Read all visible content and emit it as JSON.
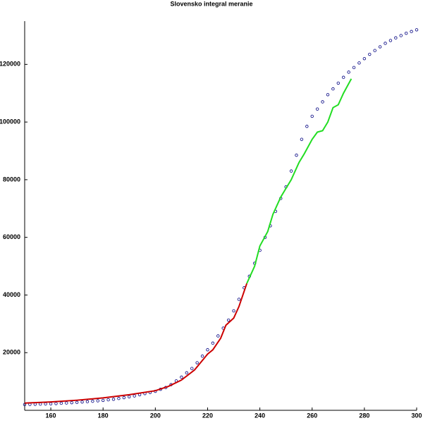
{
  "chart_data": {
    "type": "line",
    "title": "Slovensko integral meranie",
    "xlim": [
      150,
      300
    ],
    "ylim": [
      0,
      135000
    ],
    "xticks": [
      160,
      180,
      200,
      220,
      240,
      260,
      280,
      300
    ],
    "yticks": [
      20000,
      40000,
      60000,
      80000,
      100000,
      120000
    ],
    "series": [
      {
        "color": "#000080",
        "style": "points",
        "x": [
          150,
          152,
          154,
          156,
          158,
          160,
          162,
          164,
          166,
          168,
          170,
          172,
          174,
          176,
          178,
          180,
          182,
          184,
          186,
          188,
          190,
          192,
          194,
          196,
          198,
          200,
          202,
          204,
          206,
          208,
          210,
          212,
          214,
          216,
          218,
          220,
          222,
          224,
          226,
          228,
          230,
          232,
          234,
          236,
          238,
          240,
          242,
          244,
          246,
          248,
          250,
          252,
          254,
          256,
          258,
          260,
          262,
          264,
          266,
          268,
          270,
          272,
          274,
          276,
          278,
          280,
          282,
          284,
          286,
          288,
          290,
          292,
          294,
          296,
          298,
          300
        ],
        "values": [
          2000,
          2050,
          2100,
          2150,
          2200,
          2250,
          2350,
          2450,
          2550,
          2650,
          2750,
          2900,
          3000,
          3150,
          3300,
          3450,
          3650,
          3850,
          4100,
          4400,
          4700,
          5000,
          5400,
          5800,
          6200,
          6600,
          7300,
          7900,
          8900,
          10200,
          11500,
          13000,
          14500,
          16500,
          18800,
          21000,
          23300,
          25800,
          28500,
          31300,
          34500,
          38500,
          42500,
          46500,
          51000,
          55500,
          60000,
          64000,
          69000,
          73500,
          77500,
          83000,
          88500,
          94000,
          98500,
          102000,
          104500,
          107000,
          109500,
          111500,
          113500,
          115500,
          117300,
          118900,
          120500,
          122000,
          123500,
          124800,
          126100,
          127300,
          128300,
          129200,
          130000,
          130800,
          131400,
          132000
        ]
      },
      {
        "color": "#cc0000",
        "style": "line",
        "x": [
          150,
          160,
          170,
          180,
          190,
          200,
          205,
          210,
          215,
          220,
          222,
          225,
          227,
          230,
          232,
          235
        ],
        "values": [
          2500,
          2900,
          3500,
          4300,
          5400,
          6800,
          8300,
          10500,
          14000,
          19500,
          21000,
          25000,
          29500,
          32000,
          36000,
          44000
        ]
      },
      {
        "color": "#22dd22",
        "style": "line",
        "x": [
          235,
          238,
          240,
          243,
          245,
          248,
          250,
          252,
          255,
          257,
          260,
          262,
          264,
          266,
          268,
          270,
          272,
          275
        ],
        "values": [
          44000,
          50000,
          57000,
          62000,
          68000,
          74000,
          77000,
          80000,
          86000,
          89000,
          94000,
          96500,
          97000,
          100000,
          105000,
          106000,
          110000,
          115000
        ]
      }
    ]
  }
}
